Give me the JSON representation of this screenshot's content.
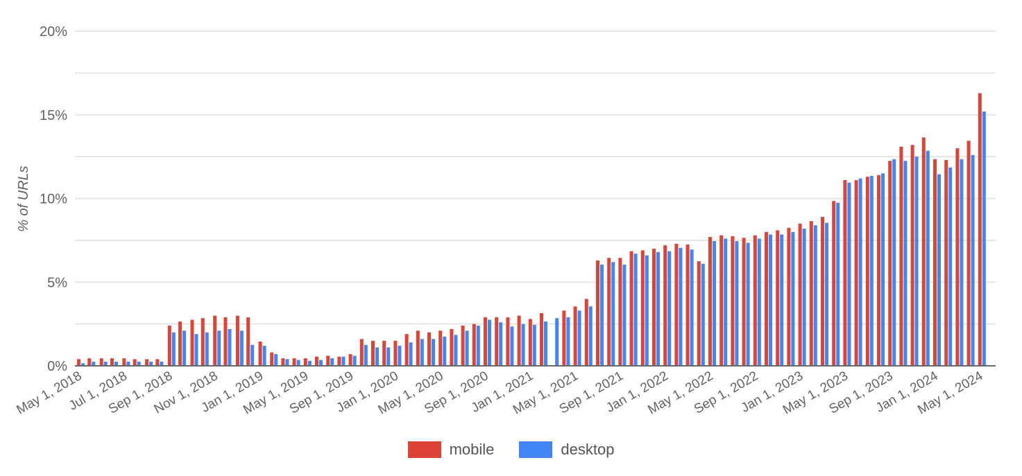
{
  "chart_data": {
    "type": "bar",
    "title": "",
    "xlabel": "",
    "ylabel": "% of URLs",
    "ylim": [
      0,
      20
    ],
    "yticks": [
      "0%",
      "5%",
      "10%",
      "15%",
      "20%"
    ],
    "grid": true,
    "legend_position": "bottom",
    "x_tick_labels": [
      "May 1, 2018",
      "Jul 1, 2018",
      "Sep 1, 2018",
      "Nov 1, 2018",
      "Jan 1, 2019",
      "May 1, 2019",
      "Sep 1, 2019",
      "Jan 1, 2020",
      "May 1, 2020",
      "Sep 1, 2020",
      "Jan 1, 2021",
      "May 1, 2021",
      "Sep 1, 2021",
      "Jan 1, 2022",
      "May 1, 2022",
      "Sep 1, 2022",
      "Jan 1, 2023",
      "May 1, 2023",
      "Sep 1, 2023",
      "Jan 1, 2024",
      "May 1, 2024"
    ],
    "categories": [
      "2018-05-01",
      "2018-05-15",
      "2018-06-01",
      "2018-06-15",
      "2018-07-01",
      "2018-07-15",
      "2018-08-01",
      "2018-08-15",
      "2018-09-01",
      "2018-09-15",
      "2018-10-01",
      "2018-10-15",
      "2018-11-01",
      "2018-11-15",
      "2018-12-01",
      "2018-12-15",
      "2019-01-01",
      "2019-02-01",
      "2019-03-01",
      "2019-04-01",
      "2019-05-01",
      "2019-06-01",
      "2019-07-01",
      "2019-08-01",
      "2019-09-01",
      "2019-10-01",
      "2019-11-01",
      "2019-12-01",
      "2020-01-01",
      "2020-02-01",
      "2020-03-01",
      "2020-04-01",
      "2020-05-01",
      "2020-06-01",
      "2020-07-01",
      "2020-08-01",
      "2020-09-01",
      "2020-10-01",
      "2020-11-01",
      "2020-12-01",
      "2021-01-01",
      "2021-02-01",
      "2021-03-01",
      "2021-04-01",
      "2021-05-01",
      "2021-06-01",
      "2021-07-01",
      "2021-08-01",
      "2021-09-01",
      "2021-10-01",
      "2021-11-01",
      "2021-12-01",
      "2022-01-01",
      "2022-02-01",
      "2022-03-01",
      "2022-04-01",
      "2022-05-01",
      "2022-06-01",
      "2022-07-01",
      "2022-08-01",
      "2022-09-01",
      "2022-10-01",
      "2022-11-01",
      "2022-12-01",
      "2023-01-01",
      "2023-02-01",
      "2023-03-01",
      "2023-04-01",
      "2023-05-01",
      "2023-06-01",
      "2023-07-01",
      "2023-08-01",
      "2023-09-01",
      "2023-10-01",
      "2023-11-01",
      "2023-12-01",
      "2024-01-01",
      "2024-02-01",
      "2024-03-01",
      "2024-04-01",
      "2024-05-01"
    ],
    "series": [
      {
        "name": "mobile",
        "color": "#db4437",
        "values": [
          0.4,
          0.45,
          0.45,
          0.45,
          0.45,
          0.4,
          0.4,
          0.4,
          2.4,
          2.65,
          2.75,
          2.85,
          3.0,
          2.9,
          3.0,
          2.9,
          1.45,
          0.8,
          0.45,
          0.45,
          0.45,
          0.55,
          0.6,
          0.55,
          0.7,
          1.6,
          1.5,
          1.5,
          1.5,
          1.9,
          2.1,
          2.0,
          2.1,
          2.2,
          2.4,
          2.5,
          2.9,
          2.9,
          2.9,
          3.0,
          2.8,
          3.15,
          null,
          3.3,
          3.55,
          4.0,
          6.3,
          6.45,
          6.45,
          6.85,
          6.9,
          7.0,
          7.2,
          7.3,
          7.25,
          6.25,
          7.7,
          7.8,
          7.75,
          7.65,
          7.8,
          8.0,
          8.1,
          8.25,
          8.5,
          8.65,
          8.9,
          9.85,
          11.1,
          11.1,
          11.3,
          11.4,
          12.25,
          13.1,
          13.2,
          13.65,
          12.35,
          12.3,
          13.0,
          13.45,
          16.3
        ]
      },
      {
        "name": "desktop",
        "color": "#4285f4",
        "values": [
          0.15,
          0.25,
          0.25,
          0.25,
          0.25,
          0.25,
          0.25,
          0.25,
          2.0,
          2.1,
          1.9,
          2.0,
          2.1,
          2.2,
          2.1,
          1.25,
          1.2,
          0.7,
          0.4,
          0.35,
          0.3,
          0.35,
          0.45,
          0.55,
          0.6,
          1.25,
          1.1,
          1.1,
          1.2,
          1.4,
          1.6,
          1.6,
          1.75,
          1.85,
          2.1,
          2.4,
          2.75,
          2.6,
          2.35,
          2.5,
          2.45,
          2.65,
          2.85,
          2.9,
          3.3,
          3.55,
          6.05,
          6.2,
          6.05,
          6.7,
          6.6,
          6.8,
          6.85,
          7.05,
          6.95,
          6.1,
          7.45,
          7.6,
          7.45,
          7.35,
          7.6,
          7.85,
          7.85,
          8.0,
          8.2,
          8.4,
          8.55,
          9.75,
          10.95,
          11.2,
          11.35,
          11.5,
          12.35,
          12.25,
          12.5,
          12.85,
          11.45,
          11.85,
          12.35,
          12.6,
          15.2
        ]
      }
    ]
  },
  "legend": {
    "items": [
      {
        "label": "mobile",
        "color": "#db4437"
      },
      {
        "label": "desktop",
        "color": "#4285f4"
      }
    ]
  },
  "axis": {
    "y_title": "% of URLs"
  }
}
